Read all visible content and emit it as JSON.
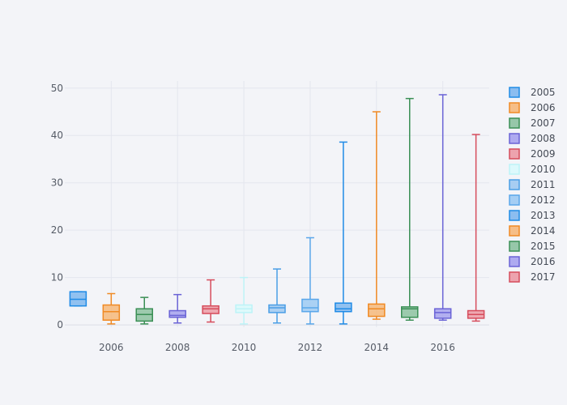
{
  "chart_data": {
    "type": "box",
    "title": "",
    "xlabel": "",
    "ylabel": "",
    "xlim": [
      2004.6,
      2017.4
    ],
    "ylim": [
      -0.5,
      51.5
    ],
    "x_ticks": [
      2006,
      2008,
      2010,
      2012,
      2014,
      2016
    ],
    "y_ticks": [
      0,
      10,
      20,
      30,
      40,
      50
    ],
    "grid": true,
    "legend_position": "right",
    "series": [
      {
        "name": "2005",
        "x": 2005,
        "min": 4.0,
        "q1": 4.0,
        "median": 5.4,
        "q3": 7.0,
        "max": 7.0,
        "color": "#1f8be6",
        "fill": "#7fb7ee"
      },
      {
        "name": "2006",
        "x": 2006,
        "min": 0.2,
        "q1": 1.0,
        "median": 2.8,
        "q3": 4.2,
        "max": 6.6,
        "color": "#f08a24",
        "fill": "#f6b87a"
      },
      {
        "name": "2007",
        "x": 2007,
        "min": 0.2,
        "q1": 0.8,
        "median": 2.2,
        "q3": 3.4,
        "max": 5.8,
        "color": "#3a8f55",
        "fill": "#8cc2a0"
      },
      {
        "name": "2008",
        "x": 2008,
        "min": 0.4,
        "q1": 1.6,
        "median": 2.0,
        "q3": 3.0,
        "max": 6.4,
        "color": "#6a63d6",
        "fill": "#a6a2ee"
      },
      {
        "name": "2009",
        "x": 2009,
        "min": 0.6,
        "q1": 2.4,
        "median": 3.4,
        "q3": 4.0,
        "max": 9.5,
        "color": "#d64c5c",
        "fill": "#ec9aa5"
      },
      {
        "name": "2010",
        "x": 2010,
        "min": 0.2,
        "q1": 2.6,
        "median": 3.4,
        "q3": 4.2,
        "max": 10.0,
        "color": "#bdf3f7",
        "fill": "#d9fafc"
      },
      {
        "name": "2011",
        "x": 2011,
        "min": 0.4,
        "q1": 2.6,
        "median": 3.6,
        "q3": 4.2,
        "max": 11.8,
        "color": "#4a9ee6",
        "fill": "#9fc9f1"
      },
      {
        "name": "2012",
        "x": 2012,
        "min": 0.2,
        "q1": 2.8,
        "median": 3.6,
        "q3": 5.4,
        "max": 18.4,
        "color": "#5aa7ea",
        "fill": "#9ccaf3"
      },
      {
        "name": "2013",
        "x": 2013,
        "min": 0.2,
        "q1": 2.8,
        "median": 3.4,
        "q3": 4.6,
        "max": 38.6,
        "color": "#1f8be6",
        "fill": "#7fb7ee"
      },
      {
        "name": "2014",
        "x": 2014,
        "min": 1.2,
        "q1": 1.8,
        "median": 3.4,
        "q3": 4.4,
        "max": 45.0,
        "color": "#f08a24",
        "fill": "#f6b87a"
      },
      {
        "name": "2015",
        "x": 2015,
        "min": 1.0,
        "q1": 1.6,
        "median": 3.4,
        "q3": 3.8,
        "max": 47.8,
        "color": "#3a8f55",
        "fill": "#8cc2a0"
      },
      {
        "name": "2016",
        "x": 2016,
        "min": 1.0,
        "q1": 1.4,
        "median": 2.6,
        "q3": 3.4,
        "max": 48.6,
        "color": "#6a63d6",
        "fill": "#a6a2ee"
      },
      {
        "name": "2017",
        "x": 2017,
        "min": 0.8,
        "q1": 1.4,
        "median": 2.2,
        "q3": 3.0,
        "max": 40.2,
        "color": "#d64c5c",
        "fill": "#ec9aa5"
      }
    ]
  }
}
